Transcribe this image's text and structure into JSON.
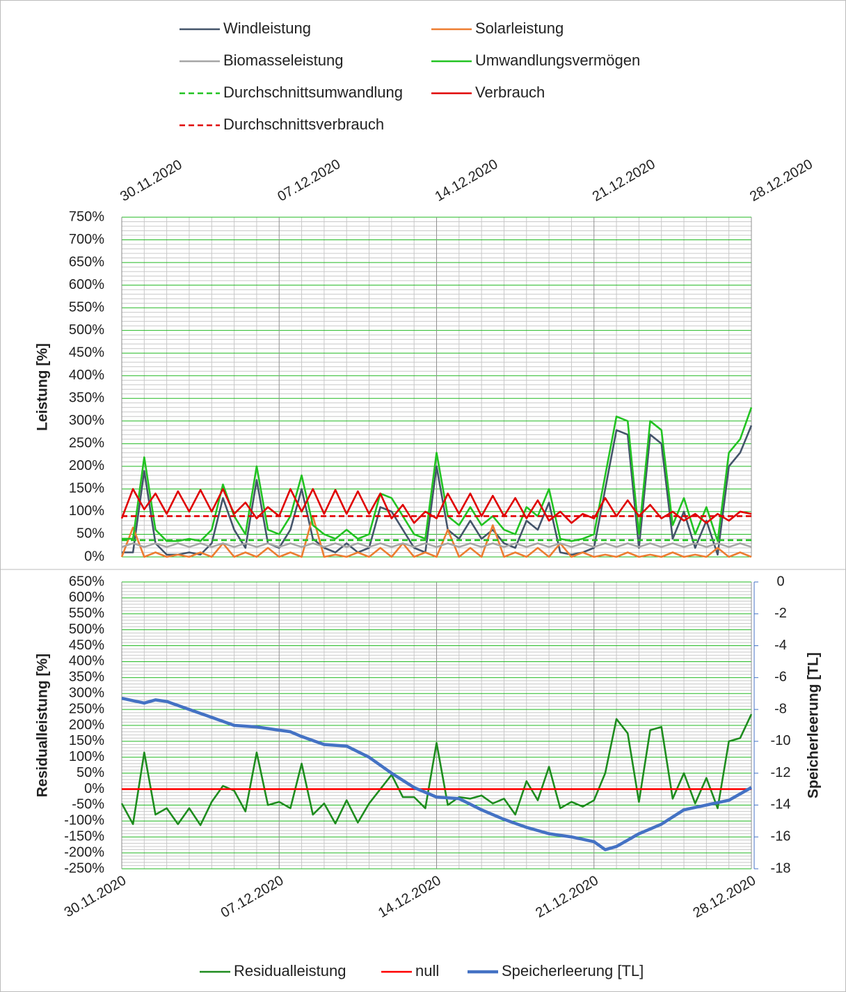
{
  "chart_data": [
    {
      "type": "line",
      "y_label": "Leistung [%]",
      "xlim": [
        0,
        28
      ],
      "xticks": [
        {
          "value": 0,
          "label": "30.11.2020"
        },
        {
          "value": 7,
          "label": "07.12.2020"
        },
        {
          "value": 14,
          "label": "14.12.2020"
        },
        {
          "value": 21,
          "label": "21.12.2020"
        },
        {
          "value": 28,
          "label": "28.12.2020"
        }
      ],
      "ylim": [
        0,
        750
      ],
      "yticks": [
        {
          "value": 0,
          "label": "0%"
        },
        {
          "value": 50,
          "label": "50%"
        },
        {
          "value": 100,
          "label": "100%"
        },
        {
          "value": 150,
          "label": "150%"
        },
        {
          "value": 200,
          "label": "200%"
        },
        {
          "value": 250,
          "label": "250%"
        },
        {
          "value": 300,
          "label": "300%"
        },
        {
          "value": 350,
          "label": "350%"
        },
        {
          "value": 400,
          "label": "400%"
        },
        {
          "value": 450,
          "label": "450%"
        },
        {
          "value": 500,
          "label": "500%"
        },
        {
          "value": 550,
          "label": "550%"
        },
        {
          "value": 600,
          "label": "600%"
        },
        {
          "value": 650,
          "label": "650%"
        },
        {
          "value": 700,
          "label": "700%"
        },
        {
          "value": 750,
          "label": "750%"
        }
      ],
      "grid": true,
      "x": [
        0,
        0.5,
        1,
        1.5,
        2,
        2.5,
        3,
        3.5,
        4,
        4.5,
        5,
        5.5,
        6,
        6.5,
        7,
        7.5,
        8,
        8.5,
        9,
        9.5,
        10,
        10.5,
        11,
        11.5,
        12,
        12.5,
        13,
        13.5,
        14,
        14.5,
        15,
        15.5,
        16,
        16.5,
        17,
        17.5,
        18,
        18.5,
        19,
        19.5,
        20,
        20.5,
        21,
        21.5,
        22,
        22.5,
        23,
        23.5,
        24,
        24.5,
        25,
        25.5,
        26,
        26.5,
        27,
        27.5,
        28
      ],
      "series": [
        {
          "name": "Windleistung",
          "color": "#44546a",
          "values": [
            10,
            10,
            190,
            30,
            5,
            5,
            10,
            5,
            30,
            130,
            60,
            20,
            170,
            30,
            20,
            60,
            150,
            40,
            20,
            10,
            30,
            10,
            20,
            110,
            100,
            60,
            20,
            10,
            200,
            60,
            40,
            80,
            40,
            60,
            30,
            20,
            80,
            60,
            120,
            10,
            5,
            10,
            20,
            150,
            280,
            270,
            20,
            270,
            250,
            40,
            100,
            20,
            80,
            5,
            200,
            230,
            290
          ]
        },
        {
          "name": "Solarleistung",
          "color": "#ed7d31",
          "values": [
            0,
            65,
            0,
            10,
            0,
            5,
            0,
            10,
            0,
            30,
            0,
            10,
            0,
            20,
            0,
            10,
            0,
            90,
            0,
            5,
            0,
            10,
            0,
            20,
            0,
            30,
            0,
            10,
            0,
            60,
            0,
            20,
            0,
            70,
            0,
            10,
            0,
            20,
            0,
            30,
            0,
            10,
            0,
            5,
            0,
            10,
            0,
            5,
            0,
            10,
            0,
            5,
            0,
            20,
            0,
            10,
            0
          ]
        },
        {
          "name": "Biomasseleistung",
          "color": "#a5a5a5",
          "values": [
            22,
            30,
            22,
            30,
            22,
            30,
            22,
            30,
            22,
            30,
            22,
            30,
            22,
            30,
            22,
            30,
            22,
            30,
            22,
            30,
            22,
            30,
            22,
            30,
            22,
            30,
            22,
            30,
            22,
            30,
            22,
            30,
            22,
            30,
            22,
            30,
            22,
            30,
            22,
            30,
            22,
            30,
            22,
            30,
            22,
            30,
            22,
            30,
            22,
            30,
            22,
            30,
            22,
            30,
            22,
            30,
            22
          ]
        },
        {
          "name": "Umwandlungsvermögen",
          "color": "#22c322",
          "values": [
            40,
            40,
            220,
            60,
            35,
            35,
            40,
            35,
            60,
            160,
            90,
            50,
            200,
            60,
            50,
            90,
            180,
            70,
            50,
            40,
            60,
            40,
            50,
            140,
            130,
            90,
            50,
            40,
            230,
            90,
            70,
            110,
            70,
            90,
            60,
            50,
            110,
            90,
            150,
            40,
            35,
            40,
            50,
            180,
            310,
            300,
            50,
            300,
            280,
            70,
            130,
            50,
            110,
            35,
            230,
            260,
            330
          ]
        },
        {
          "name": "Durchschnittsumwandlung",
          "color": "#22c322",
          "dashed": true,
          "x": [
            0,
            28
          ],
          "values": [
            37,
            37
          ]
        },
        {
          "name": "Verbrauch",
          "color": "#e00000",
          "values": [
            85,
            150,
            105,
            140,
            95,
            145,
            100,
            148,
            100,
            150,
            95,
            120,
            85,
            110,
            90,
            150,
            100,
            150,
            95,
            148,
            95,
            145,
            95,
            140,
            85,
            115,
            75,
            100,
            85,
            140,
            95,
            140,
            90,
            135,
            90,
            130,
            85,
            125,
            80,
            100,
            75,
            95,
            85,
            130,
            90,
            125,
            90,
            115,
            85,
            100,
            80,
            95,
            75,
            95,
            80,
            100,
            95
          ]
        },
        {
          "name": "Durchschnittsverbrauch",
          "color": "#e00000",
          "dashed": true,
          "x": [
            0,
            28
          ],
          "values": [
            90,
            90
          ]
        }
      ]
    },
    {
      "type": "line",
      "y_label": "Residualleistung [%]",
      "y2_label": "Speicherleerung [TL]",
      "xlim": [
        0,
        28
      ],
      "xticks": [
        {
          "value": 0,
          "label": "30.11.2020"
        },
        {
          "value": 7,
          "label": "07.12.2020"
        },
        {
          "value": 14,
          "label": "14.12.2020"
        },
        {
          "value": 21,
          "label": "21.12.2020"
        },
        {
          "value": 28,
          "label": "28.12.2020"
        }
      ],
      "ylim": [
        -250,
        650
      ],
      "yticks": [
        {
          "value": -250,
          "label": "-250%"
        },
        {
          "value": -200,
          "label": "-200%"
        },
        {
          "value": -150,
          "label": "-150%"
        },
        {
          "value": -100,
          "label": "-100%"
        },
        {
          "value": -50,
          "label": "-50%"
        },
        {
          "value": 0,
          "label": "0%"
        },
        {
          "value": 50,
          "label": "50%"
        },
        {
          "value": 100,
          "label": "100%"
        },
        {
          "value": 150,
          "label": "150%"
        },
        {
          "value": 200,
          "label": "200%"
        },
        {
          "value": 250,
          "label": "250%"
        },
        {
          "value": 300,
          "label": "300%"
        },
        {
          "value": 350,
          "label": "350%"
        },
        {
          "value": 400,
          "label": "400%"
        },
        {
          "value": 450,
          "label": "450%"
        },
        {
          "value": 500,
          "label": "500%"
        },
        {
          "value": 550,
          "label": "550%"
        },
        {
          "value": 600,
          "label": "600%"
        },
        {
          "value": 650,
          "label": "650%"
        }
      ],
      "y2lim": [
        -18,
        0
      ],
      "y2ticks": [
        -18,
        -16,
        -14,
        -12,
        -10,
        -8,
        -6,
        -4,
        -2,
        0
      ],
      "grid": true,
      "x": [
        0,
        0.5,
        1,
        1.5,
        2,
        2.5,
        3,
        3.5,
        4,
        4.5,
        5,
        5.5,
        6,
        6.5,
        7,
        7.5,
        8,
        8.5,
        9,
        9.5,
        10,
        10.5,
        11,
        11.5,
        12,
        12.5,
        13,
        13.5,
        14,
        14.5,
        15,
        15.5,
        16,
        16.5,
        17,
        17.5,
        18,
        18.5,
        19,
        19.5,
        20,
        20.5,
        21,
        21.5,
        22,
        22.5,
        23,
        23.5,
        24,
        24.5,
        25,
        25.5,
        26,
        26.5,
        27,
        27.5,
        28
      ],
      "series": [
        {
          "name": "Residualleistung",
          "color": "#1e8c1e",
          "values": [
            -45,
            -110,
            115,
            -80,
            -60,
            -110,
            -60,
            -113,
            -40,
            10,
            -5,
            -70,
            115,
            -50,
            -40,
            -60,
            80,
            -80,
            -45,
            -108,
            -35,
            -105,
            -45,
            0,
            45,
            -25,
            -25,
            -60,
            145,
            -50,
            -25,
            -30,
            -20,
            -45,
            -30,
            -80,
            25,
            -35,
            70,
            -60,
            -40,
            -55,
            -35,
            50,
            220,
            175,
            -40,
            185,
            195,
            -30,
            50,
            -45,
            35,
            -60,
            150,
            160,
            235
          ]
        },
        {
          "name": "null",
          "color": "#ff0000",
          "x": [
            0,
            28
          ],
          "values": [
            0,
            0
          ]
        },
        {
          "name": "Speicherleerung [TL]",
          "color": "#4472c4",
          "axis": "y2",
          "x": [
            0,
            1,
            1.5,
            2,
            3,
            4,
            5,
            6,
            7,
            7.5,
            8,
            9,
            10,
            11,
            12,
            13,
            14,
            15,
            16,
            17,
            18,
            19,
            20,
            21,
            21.5,
            22,
            23,
            24,
            25,
            26,
            27,
            28
          ],
          "values": [
            -7.3,
            -7.6,
            -7.4,
            -7.5,
            -8,
            -8.5,
            -9,
            -9.1,
            -9.3,
            -9.4,
            -9.7,
            -10.2,
            -10.3,
            -11,
            -12,
            -12.9,
            -13.5,
            -13.6,
            -14.3,
            -14.9,
            -15.4,
            -15.8,
            -16,
            -16.3,
            -16.8,
            -16.6,
            -15.8,
            -15.2,
            -14.3,
            -14,
            -13.7,
            -12.9
          ]
        }
      ]
    }
  ]
}
